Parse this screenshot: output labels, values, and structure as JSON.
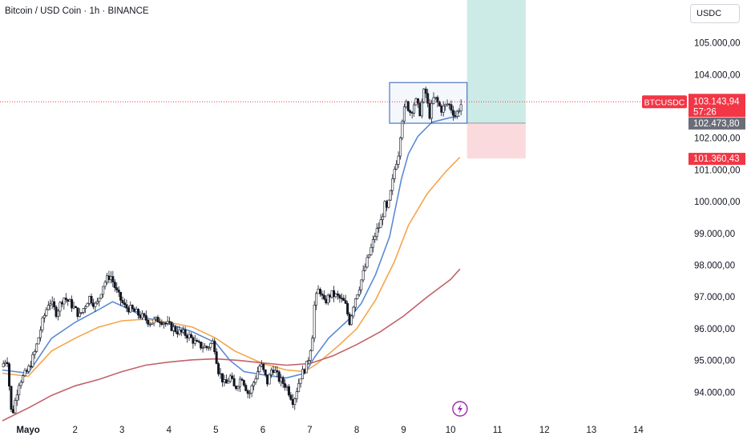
{
  "header": {
    "title": "Bitcoin / USD Coin · 1h · BINANCE"
  },
  "toolbar": {
    "currency_label": "USDC"
  },
  "chart_data": {
    "type": "candlestick",
    "symbol": "BTCUSDC",
    "interval": "1h",
    "exchange": "BINANCE",
    "y_ticks": [
      {
        "value": 94000,
        "label": "94.000,00"
      },
      {
        "value": 95000,
        "label": "95.000,00"
      },
      {
        "value": 96000,
        "label": "96.000,00"
      },
      {
        "value": 97000,
        "label": "97.000,00"
      },
      {
        "value": 98000,
        "label": "98.000,00"
      },
      {
        "value": 99000,
        "label": "99.000,00"
      },
      {
        "value": 100000,
        "label": "100.000,00"
      },
      {
        "value": 101000,
        "label": "101.000,00"
      },
      {
        "value": 102000,
        "label": "102.000,00"
      },
      {
        "value": 103000,
        "label": "103.000,00"
      },
      {
        "value": 104000,
        "label": "104.000,00"
      },
      {
        "value": 105000,
        "label": "105.000,00"
      }
    ],
    "ylim": [
      93100,
      106350
    ],
    "x_ticks": [
      {
        "day": 1,
        "label": "Mayo"
      },
      {
        "day": 2,
        "label": "2"
      },
      {
        "day": 3,
        "label": "3"
      },
      {
        "day": 4,
        "label": "4"
      },
      {
        "day": 5,
        "label": "5"
      },
      {
        "day": 6,
        "label": "6"
      },
      {
        "day": 7,
        "label": "7"
      },
      {
        "day": 8,
        "label": "8"
      },
      {
        "day": 9,
        "label": "9"
      },
      {
        "day": 10,
        "label": "10"
      },
      {
        "day": 11,
        "label": "11"
      },
      {
        "day": 12,
        "label": "12"
      },
      {
        "day": 13,
        "label": "13"
      },
      {
        "day": 14,
        "label": "14"
      }
    ],
    "xlim_days": [
      0.4,
      15.0
    ],
    "price_path": [
      [
        0.43,
        94800
      ],
      [
        0.55,
        95100
      ],
      [
        0.65,
        93200
      ],
      [
        0.8,
        94300
      ],
      [
        1.0,
        94700
      ],
      [
        1.15,
        95300
      ],
      [
        1.3,
        96200
      ],
      [
        1.45,
        96900
      ],
      [
        1.6,
        96500
      ],
      [
        1.75,
        97000
      ],
      [
        1.9,
        96800
      ],
      [
        2.1,
        96400
      ],
      [
        2.3,
        97000
      ],
      [
        2.45,
        96700
      ],
      [
        2.6,
        97400
      ],
      [
        2.75,
        97700
      ],
      [
        2.9,
        97100
      ],
      [
        3.05,
        96700
      ],
      [
        3.2,
        96600
      ],
      [
        3.4,
        96400
      ],
      [
        3.6,
        96200
      ],
      [
        3.8,
        96300
      ],
      [
        4.0,
        96100
      ],
      [
        4.2,
        95900
      ],
      [
        4.4,
        95800
      ],
      [
        4.6,
        95500
      ],
      [
        4.8,
        95400
      ],
      [
        4.95,
        95600
      ],
      [
        5.05,
        94700
      ],
      [
        5.2,
        94200
      ],
      [
        5.3,
        94500
      ],
      [
        5.4,
        94100
      ],
      [
        5.55,
        94500
      ],
      [
        5.7,
        93900
      ],
      [
        5.8,
        94300
      ],
      [
        5.95,
        94900
      ],
      [
        6.1,
        94300
      ],
      [
        6.2,
        94800
      ],
      [
        6.35,
        94400
      ],
      [
        6.5,
        94200
      ],
      [
        6.65,
        93700
      ],
      [
        6.8,
        94500
      ],
      [
        6.95,
        94900
      ],
      [
        7.05,
        95700
      ],
      [
        7.1,
        96800
      ],
      [
        7.2,
        97300
      ],
      [
        7.3,
        96800
      ],
      [
        7.45,
        97100
      ],
      [
        7.6,
        97000
      ],
      [
        7.75,
        96800
      ],
      [
        7.85,
        96200
      ],
      [
        7.95,
        96900
      ],
      [
        8.05,
        97300
      ],
      [
        8.15,
        97800
      ],
      [
        8.3,
        98500
      ],
      [
        8.4,
        99000
      ],
      [
        8.5,
        99300
      ],
      [
        8.6,
        99900
      ],
      [
        8.65,
        99700
      ],
      [
        8.75,
        100500
      ],
      [
        8.8,
        101000
      ],
      [
        8.9,
        101600
      ],
      [
        8.95,
        102500
      ],
      [
        9.05,
        103100
      ],
      [
        9.15,
        102800
      ],
      [
        9.25,
        103200
      ],
      [
        9.35,
        102800
      ],
      [
        9.45,
        103600
      ],
      [
        9.55,
        102700
      ],
      [
        9.65,
        103300
      ],
      [
        9.8,
        102900
      ],
      [
        9.95,
        103100
      ],
      [
        10.1,
        102700
      ],
      [
        10.2,
        103000
      ],
      [
        10.25,
        103144
      ]
    ],
    "moving_averages": [
      {
        "color": "#5b8ad6",
        "points": [
          [
            0.45,
            94700
          ],
          [
            1.0,
            94600
          ],
          [
            1.5,
            95700
          ],
          [
            2.0,
            96200
          ],
          [
            2.5,
            96600
          ],
          [
            2.8,
            96850
          ],
          [
            3.1,
            96650
          ],
          [
            3.5,
            96350
          ],
          [
            4.0,
            96150
          ],
          [
            4.5,
            95900
          ],
          [
            5.0,
            95550
          ],
          [
            5.3,
            95000
          ],
          [
            5.6,
            94650
          ],
          [
            6.0,
            94550
          ],
          [
            6.5,
            94450
          ],
          [
            6.9,
            94600
          ],
          [
            7.1,
            95100
          ],
          [
            7.4,
            95700
          ],
          [
            7.8,
            96250
          ],
          [
            8.1,
            96800
          ],
          [
            8.4,
            97700
          ],
          [
            8.7,
            98900
          ],
          [
            8.95,
            100700
          ],
          [
            9.1,
            101500
          ],
          [
            9.3,
            102050
          ],
          [
            9.6,
            102500
          ],
          [
            10.0,
            102650
          ],
          [
            10.2,
            102700
          ]
        ]
      },
      {
        "color": "#f5a54c",
        "points": [
          [
            0.45,
            94600
          ],
          [
            1.0,
            94500
          ],
          [
            1.5,
            95300
          ],
          [
            2.0,
            95700
          ],
          [
            2.5,
            96050
          ],
          [
            3.0,
            96250
          ],
          [
            3.5,
            96300
          ],
          [
            4.0,
            96200
          ],
          [
            4.5,
            96050
          ],
          [
            5.0,
            95700
          ],
          [
            5.4,
            95300
          ],
          [
            6.0,
            94900
          ],
          [
            6.5,
            94700
          ],
          [
            6.9,
            94650
          ],
          [
            7.2,
            94950
          ],
          [
            7.6,
            95450
          ],
          [
            8.0,
            96000
          ],
          [
            8.4,
            96900
          ],
          [
            8.8,
            98100
          ],
          [
            9.1,
            99250
          ],
          [
            9.5,
            100250
          ],
          [
            9.9,
            100950
          ],
          [
            10.2,
            101400
          ]
        ]
      },
      {
        "color": "#c2626a",
        "points": [
          [
            0.45,
            93100
          ],
          [
            1.0,
            93500
          ],
          [
            1.5,
            93900
          ],
          [
            2.0,
            94200
          ],
          [
            2.5,
            94400
          ],
          [
            3.0,
            94650
          ],
          [
            3.5,
            94850
          ],
          [
            4.0,
            94950
          ],
          [
            4.5,
            95020
          ],
          [
            5.0,
            95050
          ],
          [
            5.5,
            95000
          ],
          [
            6.0,
            94920
          ],
          [
            6.5,
            94850
          ],
          [
            7.0,
            94900
          ],
          [
            7.5,
            95150
          ],
          [
            8.0,
            95500
          ],
          [
            8.5,
            95900
          ],
          [
            9.0,
            96400
          ],
          [
            9.5,
            97000
          ],
          [
            10.0,
            97550
          ],
          [
            10.2,
            97880
          ]
        ]
      }
    ],
    "consolidation_box": {
      "x_start": 8.7,
      "x_end": 10.35,
      "y_low": 102470,
      "y_high": 103750,
      "color": "#4a75c0"
    },
    "long_position": {
      "x_start": 10.35,
      "x_end": 11.6,
      "target_top": 106350,
      "entry": 102473.8,
      "stop": 101360.43,
      "profit_color": "#cdebe6",
      "loss_color": "#fbdadd"
    },
    "price_labels": {
      "symbol_tag": "BTCUSDC",
      "current": {
        "value": 103143.94,
        "label": "103.143,94",
        "countdown": "57:26",
        "color": "#f23645"
      },
      "entry": {
        "value": 102473.8,
        "label": "102.473,80",
        "color": "#6a6d78"
      },
      "stop": {
        "value": 101360.43,
        "label": "101.360,43",
        "color": "#f23645"
      }
    },
    "event_marker": {
      "day": 10.2,
      "icon": "lightning-bolt-icon",
      "color": "#9c27b0"
    }
  }
}
